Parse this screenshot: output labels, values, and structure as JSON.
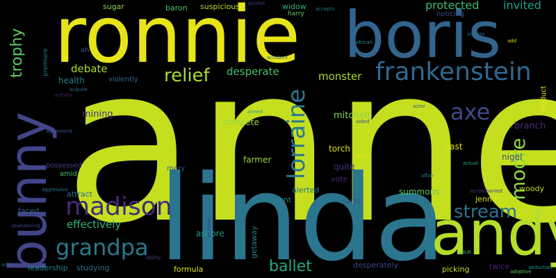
{
  "word_cloud": {
    "background": "#000000",
    "words": [
      {
        "text": "anne",
        "color": "#c5df1f"
      },
      {
        "text": "ronnie",
        "color": "#e7e419"
      },
      {
        "text": "boris",
        "color": "#32648e"
      },
      {
        "text": "linda",
        "color": "#2b758e"
      },
      {
        "text": "bunny",
        "color": "#404688"
      },
      {
        "text": "andy",
        "color": "#b5de2b"
      },
      {
        "text": "frankenstein",
        "color": "#31688e"
      },
      {
        "text": "lorraine",
        "color": "#2a788e"
      },
      {
        "text": "madison",
        "color": "#482878"
      },
      {
        "text": "axe",
        "color": "#3e4a89"
      },
      {
        "text": "grandpa",
        "color": "#2a788e"
      },
      {
        "text": "moore",
        "color": "#8fd744"
      },
      {
        "text": "relief",
        "color": "#addc30"
      },
      {
        "text": "stream",
        "color": "#2c728e"
      },
      {
        "text": "ballet",
        "color": "#22a884"
      },
      {
        "text": "trophy",
        "color": "#5ec962"
      },
      {
        "text": "protected",
        "color": "#3bbb75"
      },
      {
        "text": "invited",
        "color": "#20a486"
      },
      {
        "text": "desperate",
        "color": "#4ac16d"
      },
      {
        "text": "debate",
        "color": "#b0dd2f"
      },
      {
        "text": "effectively",
        "color": "#35b779"
      },
      {
        "text": "monster",
        "color": "#addc30"
      },
      {
        "text": "mitchell",
        "color": "#84d44b"
      },
      {
        "text": "health",
        "color": "#287c8e"
      },
      {
        "text": "mining",
        "color": "#453781"
      },
      {
        "text": "branch",
        "color": "#472d7b"
      },
      {
        "text": "compete",
        "color": "#95d840"
      },
      {
        "text": "farmer",
        "color": "#9bd93c"
      },
      {
        "text": "torch",
        "color": "#dde318"
      },
      {
        "text": "quite",
        "color": "#472f7d"
      },
      {
        "text": "vast",
        "color": "#dde318"
      },
      {
        "text": "nigel",
        "color": "#3e4c8a"
      },
      {
        "text": "summons",
        "color": "#63cb5f"
      },
      {
        "text": "jennifer",
        "color": "#d5e21a"
      },
      {
        "text": "woody",
        "color": "#bddf26"
      },
      {
        "text": "alerted",
        "color": "#2c738e"
      },
      {
        "text": "vote",
        "color": "#482475"
      },
      {
        "text": "sand",
        "color": "#3b528b"
      },
      {
        "text": "basement",
        "color": "#26818e"
      },
      {
        "text": "attract",
        "color": "#2d718e"
      },
      {
        "text": "ashore",
        "color": "#1f9e89"
      },
      {
        "text": "faced",
        "color": "#33638d"
      },
      {
        "text": "leadership",
        "color": "#24868e"
      },
      {
        "text": "studying",
        "color": "#2f6c8e"
      },
      {
        "text": "formula",
        "color": "#dde318"
      },
      {
        "text": "desperately",
        "color": "#414487"
      },
      {
        "text": "picking",
        "color": "#c8e020"
      },
      {
        "text": "twice",
        "color": "#482475"
      },
      {
        "text": "getaway",
        "color": "#27808e"
      },
      {
        "text": "sugar",
        "color": "#8bd646"
      },
      {
        "text": "baron",
        "color": "#52c569"
      },
      {
        "text": "suspicious",
        "color": "#b5de2b"
      },
      {
        "text": "widow",
        "color": "#31b57b"
      },
      {
        "text": "harry",
        "color": "#5ec962"
      },
      {
        "text": "noticing",
        "color": "#3e4c8a"
      },
      {
        "text": "violently",
        "color": "#31688e"
      },
      {
        "text": "possessed",
        "color": "#433e85"
      },
      {
        "text": "amid",
        "color": "#4ac16d"
      },
      {
        "text": "mary",
        "color": "#38598c"
      },
      {
        "text": "premiere",
        "color": "#2a768e"
      },
      {
        "text": "ah",
        "color": "#3b528b"
      },
      {
        "text": "product",
        "color": "#efe51c"
      },
      {
        "text": "accepts",
        "color": "#2a788e"
      },
      {
        "text": "alcohol",
        "color": "#433d84"
      },
      {
        "text": "accident",
        "color": "#365c8d"
      },
      {
        "text": "african",
        "color": "#228d8d"
      },
      {
        "text": "aimed",
        "color": "#1fa088"
      },
      {
        "text": "actress",
        "color": "#2d708e"
      },
      {
        "text": "add",
        "color": "#d8e219"
      },
      {
        "text": "advice",
        "color": "#e5e419"
      },
      {
        "text": "aided",
        "color": "#3b528b"
      },
      {
        "text": "activity",
        "color": "#482677"
      },
      {
        "text": "agreement",
        "color": "#3b528b"
      },
      {
        "text": "aggressive",
        "color": "#2a788e"
      },
      {
        "text": "abandoning",
        "color": "#404588"
      },
      {
        "text": "acquire",
        "color": "#2d718e"
      },
      {
        "text": "actor",
        "color": "#39568c"
      },
      {
        "text": "aircraft",
        "color": "#b8de29"
      },
      {
        "text": "ability",
        "color": "#433e85"
      },
      {
        "text": "affair",
        "color": "#24878e"
      },
      {
        "text": "actual",
        "color": "#22a785"
      },
      {
        "text": "accompanied",
        "color": "#433e85"
      },
      {
        "text": "abduction",
        "color": "#1e9b8a"
      },
      {
        "text": "adoptive",
        "color": "#5cc863"
      },
      {
        "text": "addition",
        "color": "#453581"
      },
      {
        "text": "acid",
        "color": "#31688e"
      },
      {
        "text": "adult",
        "color": "#4ac16d"
      }
    ]
  }
}
